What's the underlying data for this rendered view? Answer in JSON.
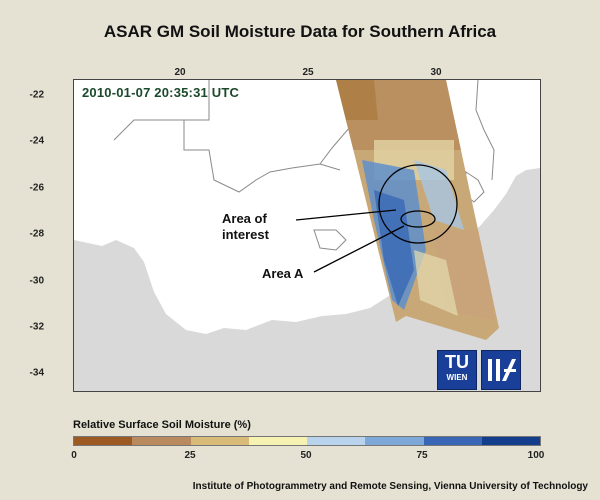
{
  "title": "ASAR GM Soil Moisture Data for Southern Africa",
  "map": {
    "timestamp": "2010-01-07 20:35:31 UTC",
    "x_ticks": [
      "20",
      "25",
      "30"
    ],
    "y_ticks": [
      "-22",
      "-24",
      "-26",
      "-28",
      "-30",
      "-32",
      "-34"
    ],
    "annotation_area_of_interest": [
      "Area of",
      "interest"
    ],
    "annotation_area_a": "Area A",
    "logo_tu_top": "TU",
    "logo_tu_bottom": "WIEN",
    "colors": {
      "land": "#ffffff",
      "sea": "#d9d9d9",
      "border": "#8a8a8a"
    }
  },
  "legend": {
    "title": "Relative Surface Soil Moisture (%)",
    "ticks": [
      "0",
      "25",
      "50",
      "75",
      "100"
    ],
    "colors": [
      "#9c5a22",
      "#b98a5e",
      "#d9bb78",
      "#f6f2b2",
      "#b8d3eb",
      "#7da8d8",
      "#3966b5",
      "#143e8c"
    ]
  },
  "footer": "Institute of Photogrammetry and Remote Sensing, Vienna University of Technology"
}
